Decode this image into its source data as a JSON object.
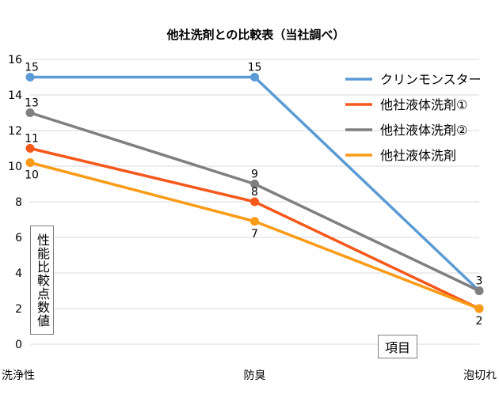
{
  "chart_data": {
    "type": "line",
    "title": "他社洗剤との比較表（当社調べ）",
    "ylabel": "性能比較点数値",
    "xlabel": "項目",
    "categories": [
      "洗浄性",
      "防臭",
      "泡切れ"
    ],
    "ylim": [
      0,
      16
    ],
    "yticks": [
      0,
      2,
      4,
      6,
      8,
      10,
      12,
      14,
      16
    ],
    "grid": true,
    "legend_position": "top-right",
    "series": [
      {
        "name": "クリンモンスター",
        "color": "#5b9bd5",
        "values": [
          15,
          15,
          3
        ]
      },
      {
        "name": "他社液体洗剤①",
        "color": "#f4581a",
        "values": [
          11,
          8,
          2
        ]
      },
      {
        "name": "他社液体洗剤②",
        "color": "#7f7f7f",
        "values": [
          13,
          9,
          3
        ]
      },
      {
        "name": "他社液体洗剤",
        "color": "#f99b16",
        "values": [
          10.2,
          6.9,
          2
        ]
      }
    ],
    "data_labels": [
      {
        "series": 0,
        "index": 0,
        "text": "15",
        "pos": "above"
      },
      {
        "series": 0,
        "index": 1,
        "text": "15",
        "pos": "above"
      },
      {
        "series": 2,
        "index": 0,
        "text": "13",
        "pos": "above"
      },
      {
        "series": 1,
        "index": 0,
        "text": "11",
        "pos": "above"
      },
      {
        "series": 3,
        "index": 0,
        "text": "10",
        "pos": "below"
      },
      {
        "series": 2,
        "index": 1,
        "text": "9",
        "pos": "above"
      },
      {
        "series": 1,
        "index": 1,
        "text": "8",
        "pos": "above"
      },
      {
        "series": 3,
        "index": 1,
        "text": "7",
        "pos": "below"
      },
      {
        "series": 2,
        "index": 2,
        "text": "3",
        "pos": "above"
      },
      {
        "series": 3,
        "index": 2,
        "text": "2",
        "pos": "below"
      }
    ]
  }
}
